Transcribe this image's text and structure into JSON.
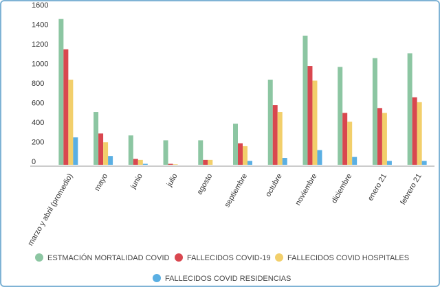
{
  "chart_data": {
    "type": "bar",
    "categories": [
      "marzo y abril (promedio)",
      "mayo",
      "junio",
      "julio",
      "agosto",
      "septiembre",
      "octubre",
      "noviembre",
      "diciembre",
      "enero 21",
      "febrero 21"
    ],
    "series": [
      {
        "name": "ESTMACIÓN MORTALIDAD COVID",
        "color": "#8cc6a2",
        "values": [
          1490,
          540,
          300,
          250,
          250,
          420,
          870,
          1320,
          1000,
          1090,
          1140
        ]
      },
      {
        "name": "FALLECIDOS COVID-19",
        "color": "#d9474f",
        "values": [
          1180,
          320,
          60,
          10,
          50,
          220,
          610,
          1010,
          530,
          580,
          690
        ]
      },
      {
        "name": "FALLECIDOS COVID HOSPITALES",
        "color": "#f2cf6b",
        "values": [
          870,
          230,
          50,
          5,
          50,
          190,
          540,
          860,
          440,
          530,
          640
        ]
      },
      {
        "name": "FALLECIDOS COVID RESIDENCIAS",
        "color": "#5aafe3",
        "values": [
          280,
          90,
          10,
          0,
          0,
          40,
          70,
          150,
          80,
          40,
          40
        ]
      }
    ],
    "ylim": [
      0,
      1600
    ],
    "yticks": [
      0,
      200,
      400,
      600,
      800,
      1000,
      1200,
      1400,
      1600
    ]
  }
}
